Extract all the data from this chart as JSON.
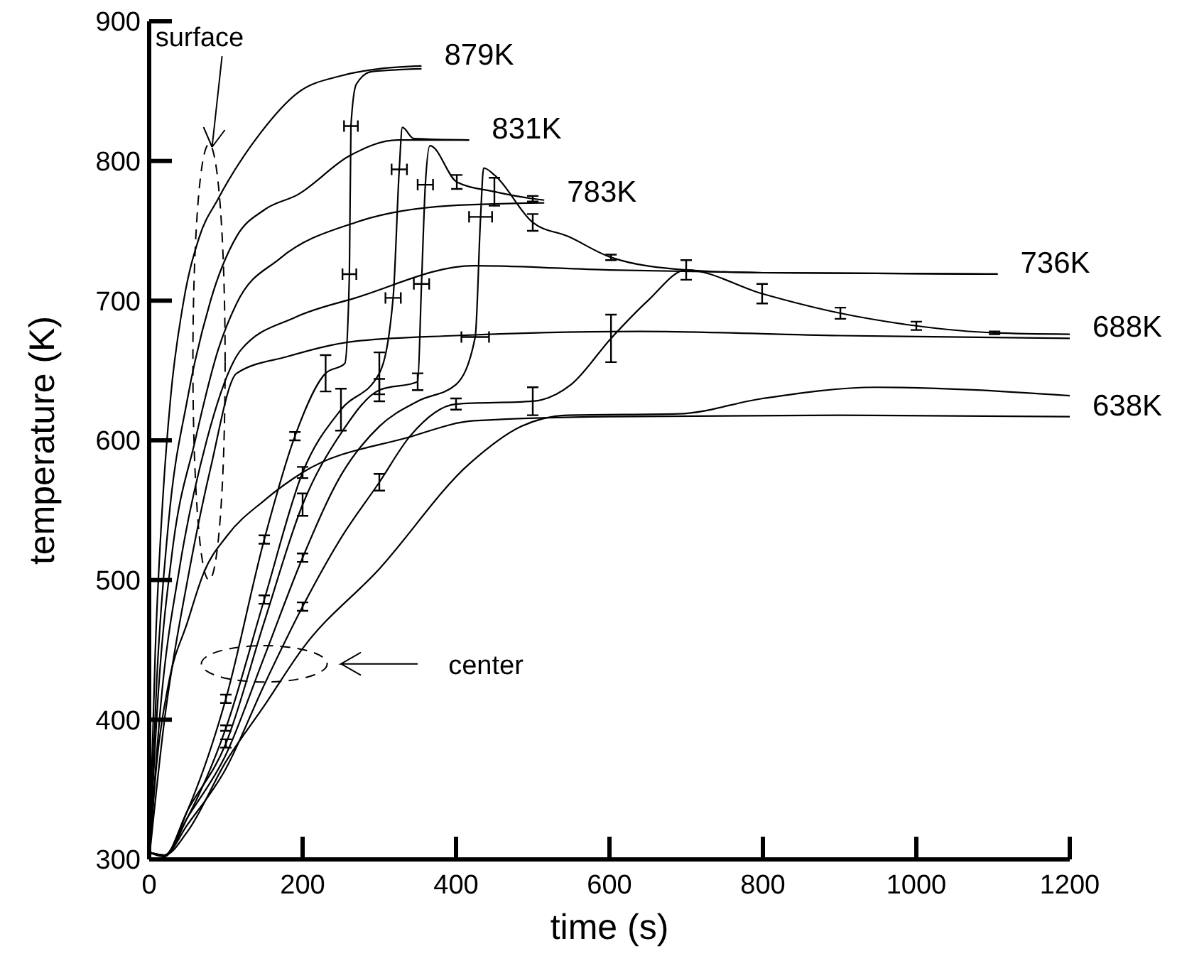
{
  "chart_data": {
    "type": "line",
    "xlabel": "time (s)",
    "ylabel": "temperature (K)",
    "xlim": [
      0,
      1200
    ],
    "ylim": [
      300,
      900
    ],
    "xticks": [
      0,
      200,
      400,
      600,
      800,
      1000,
      1200
    ],
    "yticks": [
      300,
      400,
      500,
      600,
      700,
      800,
      900
    ],
    "annotations": [
      "surface",
      "center"
    ],
    "series": [
      {
        "name": "879K",
        "color": "#000000",
        "x": [
          0,
          8,
          18,
          28,
          45,
          65,
          90,
          145,
          194,
          250,
          300,
          355
        ],
        "values": [
          300,
          450,
          560,
          631,
          700,
          745,
          773,
          820,
          849,
          861,
          866,
          868
        ]
      },
      {
        "name": "831K",
        "color": "#000000",
        "x": [
          0,
          10,
          25,
          50,
          80,
          114,
          150,
          194,
          262,
          324,
          417
        ],
        "values": [
          300,
          430,
          540,
          630,
          700,
          746,
          765,
          776,
          804,
          815,
          815
        ]
      },
      {
        "name": "783K",
        "color": "#000000",
        "x": [
          0,
          12,
          30,
          60,
          90,
          114,
          170,
          269,
          392,
          515
        ],
        "values": [
          300,
          420,
          520,
          600,
          665,
          698,
          730,
          756,
          768,
          770
        ]
      },
      {
        "name": "736K",
        "color": "#000000",
        "x": [
          0,
          15,
          40,
          75,
          120,
          190,
          269,
          423,
          600,
          800,
          1106
        ],
        "values": [
          300,
          410,
          510,
          600,
          665,
          688,
          702,
          725,
          722,
          720,
          719
        ]
      },
      {
        "name": "688K",
        "color": "#000000",
        "x": [
          0,
          20,
          50,
          80,
          114,
          180,
          269,
          400,
          639,
          900,
          1200
        ],
        "values": [
          300,
          400,
          500,
          580,
          648,
          660,
          671,
          675,
          678,
          675,
          673
        ]
      },
      {
        "name": "638K",
        "color": "#000000",
        "x": [
          0,
          10,
          25,
          50,
          71,
          102,
          150,
          200,
          337,
          423,
          600,
          900,
          1200
        ],
        "values": [
          300,
          370,
          425,
          470,
          505,
          532,
          557,
          577,
          602,
          614,
          617,
          618,
          617
        ]
      },
      {
        "color": "#000000",
        "x": [
          0,
          20,
          50,
          100,
          150,
          190,
          230,
          255,
          261,
          263,
          270,
          290,
          355
        ],
        "values": [
          305,
          302,
          335,
          415,
          529,
          603,
          648,
          655,
          719,
          825,
          855,
          864,
          866
        ],
        "errors": [
          null,
          null,
          null,
          3,
          3,
          3,
          13,
          null,
          null,
          null,
          null,
          null,
          null
        ],
        "xerrors": [
          null,
          null,
          null,
          null,
          null,
          null,
          null,
          null,
          9,
          9,
          null,
          null,
          null
        ]
      },
      {
        "color": "#000000",
        "x": [
          0,
          20,
          50,
          100,
          150,
          200,
          250,
          300,
          318,
          326,
          330,
          345,
          417
        ],
        "values": [
          305,
          303,
          330,
          394,
          486,
          577,
          622,
          648,
          702,
          794,
          824,
          816,
          815
        ],
        "errors": [
          null,
          null,
          null,
          2,
          3,
          4,
          15,
          15,
          null,
          null,
          null,
          null,
          null
        ],
        "xerrors": [
          null,
          null,
          null,
          null,
          null,
          null,
          null,
          null,
          10,
          10,
          null,
          null,
          null
        ]
      },
      {
        "color": "#000000",
        "x": [
          0,
          20,
          50,
          100,
          150,
          200,
          250,
          300,
          350,
          355,
          360,
          366,
          401,
          450,
          500,
          515
        ],
        "values": [
          305,
          303,
          335,
          383,
          470,
          554,
          605,
          636,
          642,
          712,
          783,
          811,
          785,
          778,
          773,
          772
        ],
        "errors": [
          null,
          null,
          null,
          3,
          null,
          8,
          null,
          8,
          6,
          null,
          null,
          null,
          5,
          10,
          2,
          null
        ],
        "xerrors": [
          null,
          null,
          null,
          null,
          null,
          null,
          null,
          null,
          null,
          10,
          10,
          null,
          null,
          null,
          null,
          null
        ]
      },
      {
        "color": "#000000",
        "x": [
          0,
          20,
          50,
          100,
          150,
          200,
          250,
          300,
          350,
          400,
          425,
          432,
          436,
          450,
          500,
          546,
          602,
          700,
          800,
          1106
        ],
        "values": [
          305,
          303,
          330,
          375,
          445,
          516,
          575,
          610,
          628,
          640,
          674,
          760,
          795,
          790,
          756,
          746,
          731,
          722,
          720,
          719
        ],
        "errors": [
          null,
          null,
          null,
          null,
          null,
          3,
          null,
          null,
          null,
          null,
          null,
          null,
          null,
          null,
          6,
          null,
          2,
          null,
          null,
          null
        ],
        "xerrors": [
          null,
          null,
          null,
          null,
          null,
          null,
          null,
          null,
          null,
          null,
          18,
          15,
          null,
          null,
          null,
          null,
          null,
          null,
          null,
          null
        ]
      },
      {
        "color": "#000000",
        "x": [
          0,
          20,
          50,
          100,
          150,
          200,
          250,
          300,
          340,
          400,
          500,
          550,
          602,
          650,
          700,
          799,
          901,
          1000,
          1102,
          1200
        ],
        "values": [
          305,
          303,
          325,
          365,
          425,
          481,
          530,
          570,
          603,
          626,
          628,
          640,
          673,
          700,
          722,
          705,
          691,
          682,
          677,
          676
        ],
        "errors": [
          null,
          null,
          null,
          null,
          null,
          3,
          null,
          6,
          null,
          4,
          10,
          null,
          17,
          null,
          7,
          7,
          4,
          3,
          1,
          null
        ]
      },
      {
        "color": "#000000",
        "x": [
          0,
          20,
          50,
          100,
          150,
          200,
          300,
          417,
          485,
          546,
          690,
          800,
          948,
          1200
        ],
        "values": [
          305,
          303,
          320,
          370,
          410,
          451,
          508,
          583,
          610,
          618,
          619,
          630,
          638,
          632
        ]
      }
    ]
  }
}
